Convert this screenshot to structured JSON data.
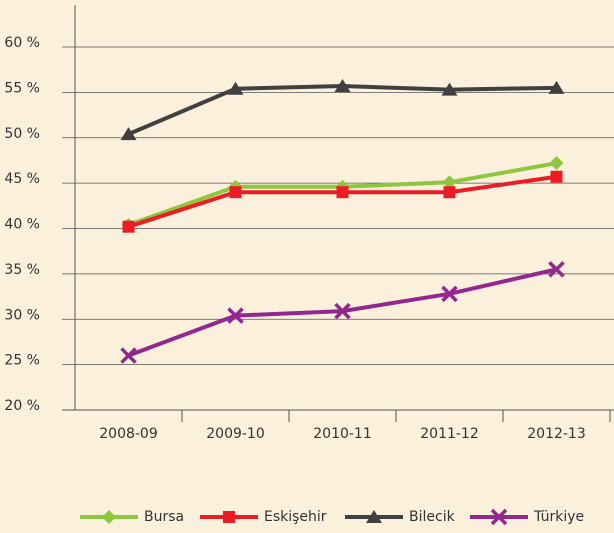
{
  "chart_data": {
    "type": "line",
    "categories": [
      "2008-09",
      "2009-10",
      "2010-11",
      "2011-12",
      "2012-13"
    ],
    "series": [
      {
        "name": "Bursa",
        "color": "#8dc63f",
        "marker": "diamond",
        "values": [
          40.4,
          44.6,
          44.6,
          45.1,
          47.2
        ]
      },
      {
        "name": "Eskişehir",
        "color": "#ed1c24",
        "marker": "square",
        "values": [
          40.2,
          44.0,
          44.0,
          44.0,
          45.7
        ]
      },
      {
        "name": "Bilecik",
        "color": "#404040",
        "marker": "triangle",
        "values": [
          50.4,
          55.4,
          55.7,
          55.3,
          55.5
        ]
      },
      {
        "name": "Türkiye",
        "color": "#92278f",
        "marker": "x",
        "values": [
          26.0,
          30.4,
          30.9,
          32.8,
          35.5
        ]
      }
    ],
    "ylim": [
      20,
      60
    ],
    "yticks": [
      {
        "value": 20,
        "label": "20 %"
      },
      {
        "value": 25,
        "label": "25 %"
      },
      {
        "value": 30,
        "label": "30 %"
      },
      {
        "value": 35,
        "label": "35 %"
      },
      {
        "value": 40,
        "label": "40 %"
      },
      {
        "value": 45,
        "label": "45 %"
      },
      {
        "value": 50,
        "label": "50 %"
      },
      {
        "value": 55,
        "label": "55 %"
      },
      {
        "value": 60,
        "label": "60 %"
      }
    ],
    "grid": true,
    "legend": "bottom"
  }
}
